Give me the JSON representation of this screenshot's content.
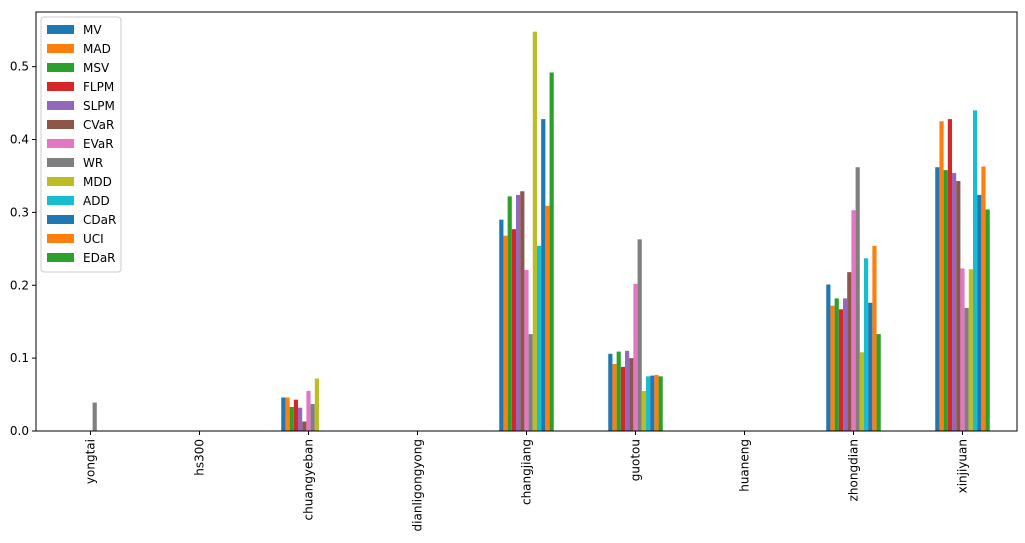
{
  "chart_data": {
    "type": "bar",
    "categories": [
      "yongtai",
      "hs300",
      "chuangyeban",
      "dianligongyong",
      "changjiang",
      "guotou",
      "huaneng",
      "zhongdian",
      "xinjiyuan"
    ],
    "series": [
      {
        "name": "MV",
        "color": "#1f77b4",
        "values": [
          0,
          0,
          0.046,
          0,
          0.29,
          0.106,
          0,
          0.201,
          0.362
        ]
      },
      {
        "name": "MAD",
        "color": "#ff7f0e",
        "values": [
          0,
          0,
          0.046,
          0,
          0.268,
          0.092,
          0,
          0.172,
          0.425
        ]
      },
      {
        "name": "MSV",
        "color": "#2ca02c",
        "values": [
          0,
          0,
          0.033,
          0,
          0.322,
          0.109,
          0,
          0.182,
          0.358
        ]
      },
      {
        "name": "FLPM",
        "color": "#d62728",
        "values": [
          0,
          0,
          0.043,
          0,
          0.277,
          0.088,
          0,
          0.167,
          0.428
        ]
      },
      {
        "name": "SLPM",
        "color": "#9467bd",
        "values": [
          0,
          0,
          0.032,
          0,
          0.324,
          0.11,
          0,
          0.182,
          0.354
        ]
      },
      {
        "name": "CVaR",
        "color": "#8c564b",
        "values": [
          0,
          0,
          0.013,
          0,
          0.329,
          0.1,
          0,
          0.218,
          0.343
        ]
      },
      {
        "name": "EVaR",
        "color": "#e377c2",
        "values": [
          0,
          0,
          0.055,
          0,
          0.221,
          0.202,
          0,
          0.303,
          0.223
        ]
      },
      {
        "name": "WR",
        "color": "#7f7f7f",
        "values": [
          0.039,
          0,
          0.037,
          0,
          0.133,
          0.263,
          0,
          0.362,
          0.169
        ]
      },
      {
        "name": "MDD",
        "color": "#bcbd22",
        "values": [
          0,
          0,
          0.072,
          0,
          0.548,
          0.055,
          0,
          0.108,
          0.222
        ]
      },
      {
        "name": "ADD",
        "color": "#17becf",
        "values": [
          0,
          0,
          0,
          0,
          0.254,
          0.075,
          0,
          0.237,
          0.44
        ]
      },
      {
        "name": "CDaR",
        "color": "#1f77b4",
        "values": [
          0,
          0,
          0,
          0,
          0.428,
          0.076,
          0,
          0.176,
          0.324
        ]
      },
      {
        "name": "UCI",
        "color": "#ff7f0e",
        "values": [
          0,
          0,
          0,
          0,
          0.309,
          0.077,
          0,
          0.254,
          0.363
        ]
      },
      {
        "name": "EDaR",
        "color": "#2ca02c",
        "values": [
          0,
          0,
          0,
          0,
          0.492,
          0.075,
          0,
          0.133,
          0.304
        ]
      }
    ],
    "y_ticks": [
      0.0,
      0.1,
      0.2,
      0.3,
      0.4,
      0.5
    ],
    "y_tick_labels": [
      "0.0",
      "0.1",
      "0.2",
      "0.3",
      "0.4",
      "0.5"
    ],
    "ylim": [
      0,
      0.575
    ],
    "title": "",
    "xlabel": "",
    "ylabel": "",
    "grid": false,
    "legend_position": "top-left"
  }
}
